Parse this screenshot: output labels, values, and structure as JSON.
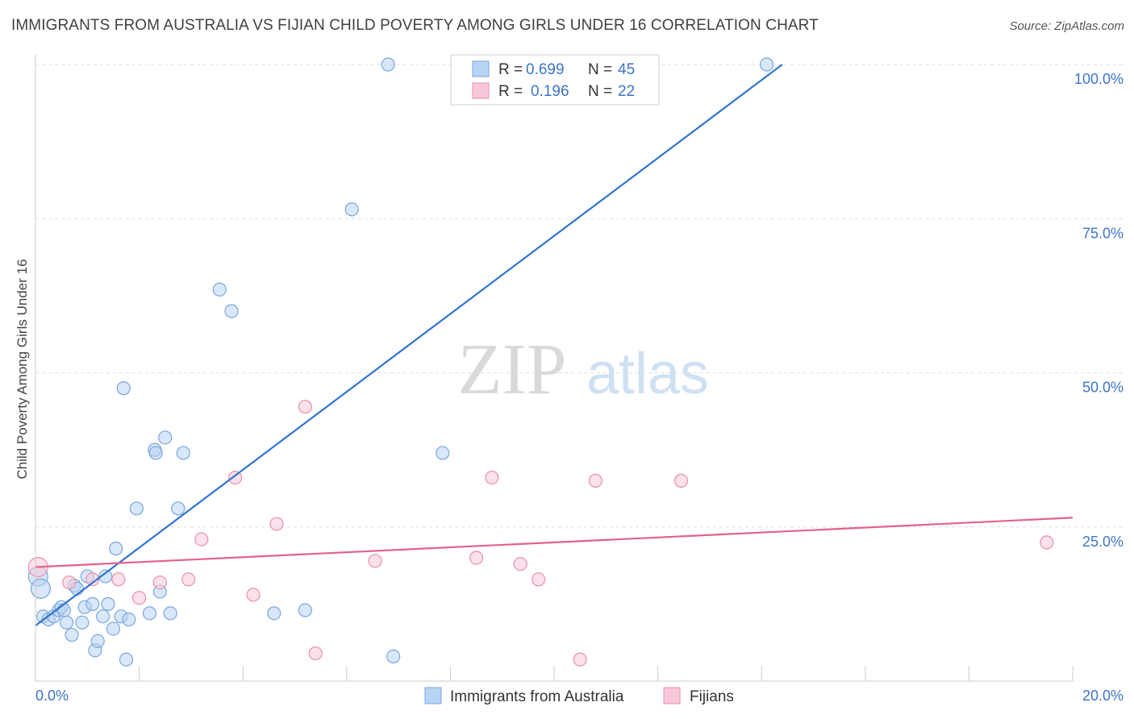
{
  "title": "IMMIGRANTS FROM AUSTRALIA VS FIJIAN CHILD POVERTY AMONG GIRLS UNDER 16 CORRELATION CHART",
  "source": "Source: ZipAtlas.com",
  "watermark": {
    "zip": "ZIP",
    "atlas": "atlas"
  },
  "colors": {
    "blue_fill": "#b8d4f4",
    "blue_stroke": "#7aa6dc",
    "blue_line": "#2f74d0",
    "pink_fill": "#f8c8d6",
    "pink_stroke": "#e98fab",
    "pink_line": "#e2628d",
    "axis_label": "#3d73c9",
    "grid": "#dddddd"
  },
  "legend": {
    "rows": [
      {
        "r_label": "R =",
        "r_value": "0.699",
        "n_label": "N =",
        "n_value": "45"
      },
      {
        "r_label": "R =",
        "r_value": "0.196",
        "n_label": "N =",
        "n_value": "22"
      }
    ]
  },
  "chart_data": {
    "type": "scatter",
    "title": "IMMIGRANTS FROM AUSTRALIA VS FIJIAN CHILD POVERTY AMONG GIRLS UNDER 16 CORRELATION CHART",
    "xlabel": "",
    "ylabel": "Child Poverty Among Girls Under 16",
    "xlim": [
      0,
      20
    ],
    "ylim": [
      0,
      100
    ],
    "x_tick_labels": {
      "min": "0.0%",
      "max": "20.0%"
    },
    "y_ticks": [
      25,
      50,
      75,
      100
    ],
    "y_tick_labels": [
      "25.0%",
      "50.0%",
      "75.0%",
      "100.0%"
    ],
    "grid": true,
    "legend_position": "top-center",
    "series": [
      {
        "name": "Immigrants from Australia",
        "color": "blue",
        "r": 0.699,
        "n": 45,
        "trend": {
          "x": [
            0,
            14.4
          ],
          "y": [
            9.0,
            100.0
          ]
        },
        "points": [
          {
            "x": 0.05,
            "y": 17.0,
            "big": true
          },
          {
            "x": 0.1,
            "y": 15.0,
            "big": true
          },
          {
            "x": 0.15,
            "y": 10.5
          },
          {
            "x": 0.25,
            "y": 10.0
          },
          {
            "x": 0.35,
            "y": 10.5
          },
          {
            "x": 0.45,
            "y": 11.5
          },
          {
            "x": 0.5,
            "y": 12.0
          },
          {
            "x": 0.6,
            "y": 9.5
          },
          {
            "x": 0.7,
            "y": 7.5
          },
          {
            "x": 0.75,
            "y": 15.5
          },
          {
            "x": 0.8,
            "y": 15.0
          },
          {
            "x": 0.9,
            "y": 9.5
          },
          {
            "x": 0.95,
            "y": 12.0
          },
          {
            "x": 1.0,
            "y": 17.0
          },
          {
            "x": 1.1,
            "y": 12.5
          },
          {
            "x": 1.15,
            "y": 5.0
          },
          {
            "x": 1.2,
            "y": 6.5
          },
          {
            "x": 1.3,
            "y": 10.5
          },
          {
            "x": 1.35,
            "y": 17.0
          },
          {
            "x": 1.4,
            "y": 12.5
          },
          {
            "x": 1.5,
            "y": 8.5
          },
          {
            "x": 1.55,
            "y": 21.5
          },
          {
            "x": 1.65,
            "y": 10.5
          },
          {
            "x": 1.7,
            "y": 47.5
          },
          {
            "x": 1.75,
            "y": 3.5
          },
          {
            "x": 1.8,
            "y": 10.0
          },
          {
            "x": 1.95,
            "y": 28.0
          },
          {
            "x": 2.2,
            "y": 11.0
          },
          {
            "x": 2.3,
            "y": 37.5
          },
          {
            "x": 2.32,
            "y": 37.0
          },
          {
            "x": 2.4,
            "y": 14.5
          },
          {
            "x": 2.5,
            "y": 39.5
          },
          {
            "x": 2.6,
            "y": 11.0
          },
          {
            "x": 2.75,
            "y": 28.0
          },
          {
            "x": 2.85,
            "y": 37.0
          },
          {
            "x": 3.55,
            "y": 63.5
          },
          {
            "x": 3.78,
            "y": 60.0
          },
          {
            "x": 4.6,
            "y": 11.0
          },
          {
            "x": 5.2,
            "y": 11.5
          },
          {
            "x": 6.1,
            "y": 76.5
          },
          {
            "x": 6.8,
            "y": 100.0
          },
          {
            "x": 6.9,
            "y": 4.0
          },
          {
            "x": 7.85,
            "y": 37.0
          },
          {
            "x": 14.1,
            "y": 100.0
          },
          {
            "x": 0.55,
            "y": 11.5
          }
        ]
      },
      {
        "name": "Fijians",
        "color": "pink",
        "r": 0.196,
        "n": 22,
        "trend": {
          "x": [
            0,
            20
          ],
          "y": [
            18.5,
            26.5
          ]
        },
        "points": [
          {
            "x": 0.05,
            "y": 18.5,
            "big": true
          },
          {
            "x": 0.65,
            "y": 16.0
          },
          {
            "x": 1.1,
            "y": 16.5
          },
          {
            "x": 1.6,
            "y": 16.5
          },
          {
            "x": 2.0,
            "y": 13.5
          },
          {
            "x": 2.4,
            "y": 16.0
          },
          {
            "x": 2.95,
            "y": 16.5
          },
          {
            "x": 3.2,
            "y": 23.0
          },
          {
            "x": 3.85,
            "y": 33.0
          },
          {
            "x": 4.2,
            "y": 14.0
          },
          {
            "x": 4.65,
            "y": 25.5
          },
          {
            "x": 5.2,
            "y": 44.5
          },
          {
            "x": 5.4,
            "y": 4.5
          },
          {
            "x": 6.55,
            "y": 19.5
          },
          {
            "x": 8.5,
            "y": 20.0
          },
          {
            "x": 8.8,
            "y": 33.0
          },
          {
            "x": 9.35,
            "y": 19.0
          },
          {
            "x": 9.7,
            "y": 16.5
          },
          {
            "x": 10.5,
            "y": 3.5
          },
          {
            "x": 10.8,
            "y": 32.5
          },
          {
            "x": 12.45,
            "y": 32.5
          },
          {
            "x": 19.5,
            "y": 22.5
          }
        ]
      }
    ]
  }
}
